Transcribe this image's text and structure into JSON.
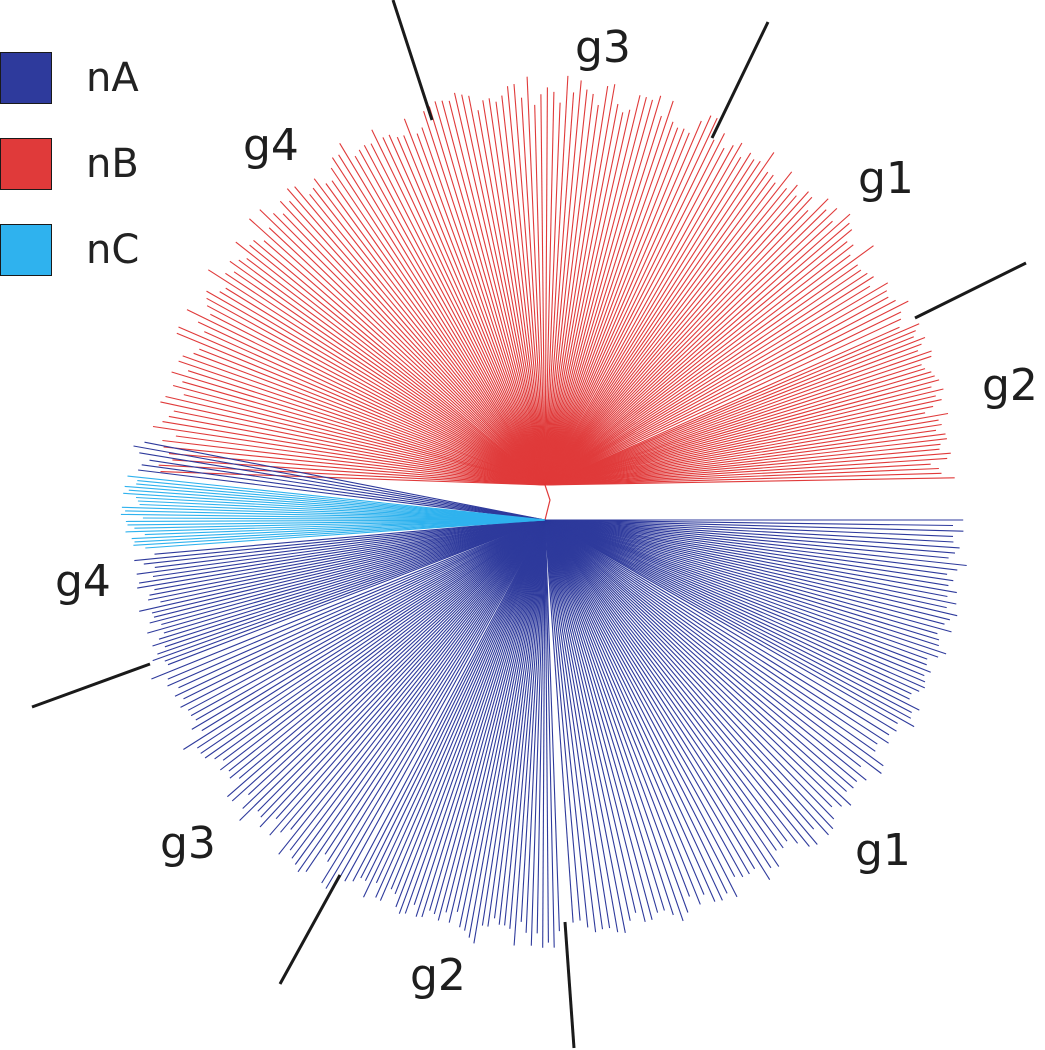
{
  "legend": {
    "items": [
      {
        "label": "nA",
        "color": "#2e3a9c"
      },
      {
        "label": "nB",
        "color": "#e03a3a"
      },
      {
        "label": "nC",
        "color": "#2fb2ee"
      }
    ]
  },
  "tree": {
    "clades": {
      "nA": {
        "color": "#2e3a9c",
        "groups": [
          {
            "label": "g1"
          },
          {
            "label": "g2"
          },
          {
            "label": "g3"
          },
          {
            "label": "g4"
          }
        ]
      },
      "nB": {
        "color": "#e03a3a",
        "groups": [
          {
            "label": "g1"
          },
          {
            "label": "g2"
          },
          {
            "label": "g3"
          },
          {
            "label": "g4"
          }
        ]
      },
      "nC": {
        "color": "#2fb2ee"
      }
    }
  }
}
